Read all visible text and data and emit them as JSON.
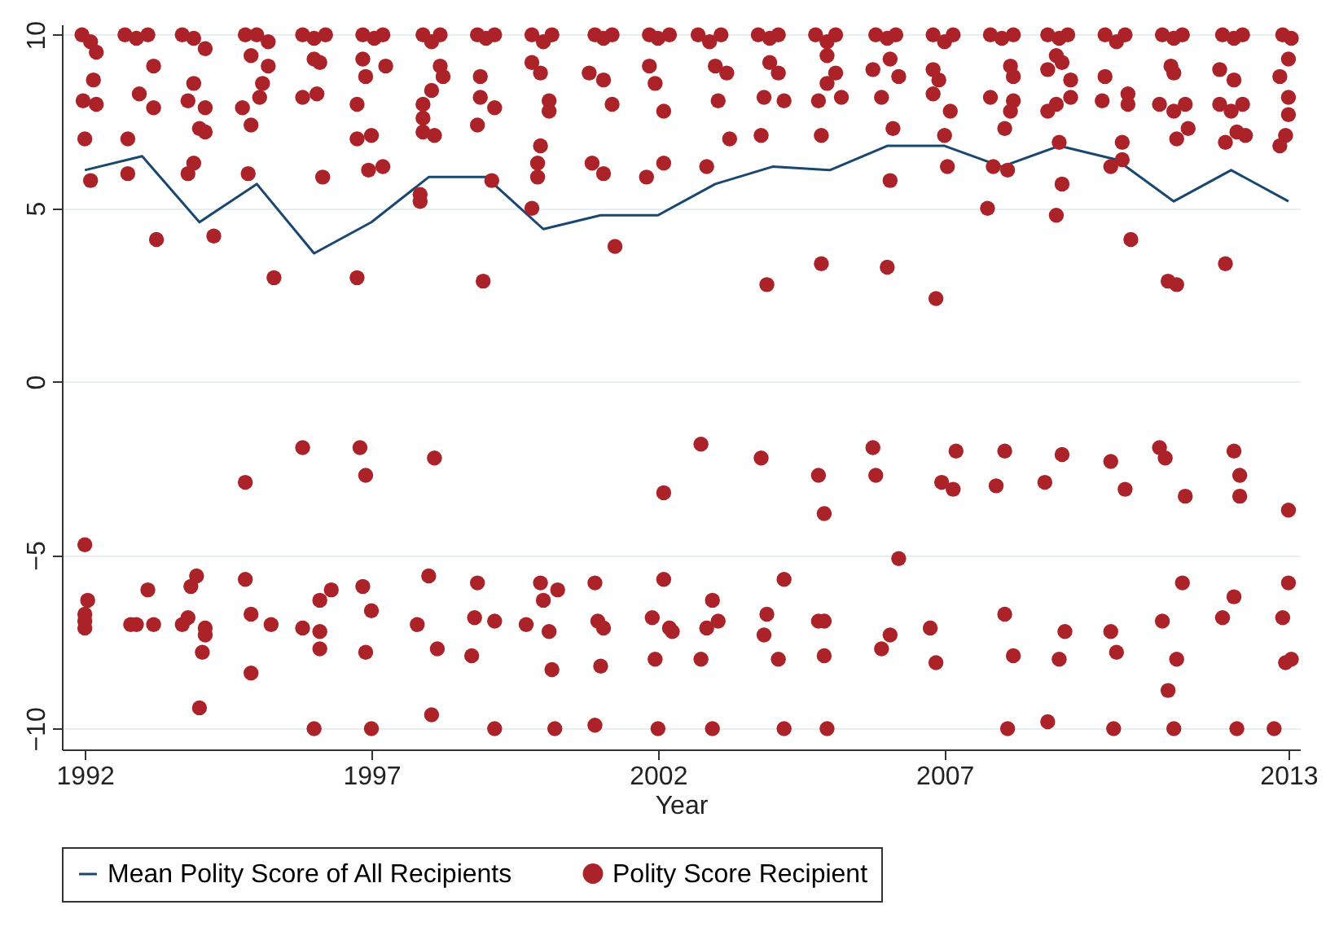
{
  "chart_data": {
    "type": "scatter",
    "xlabel": "Year",
    "xlim": [
      1991.6,
      2013.2
    ],
    "xticks": [
      1992,
      1997,
      2002,
      2007,
      2013
    ],
    "ylim": [
      -10.6,
      10.3
    ],
    "yticks": [
      -10,
      -5,
      0,
      5,
      10
    ],
    "grid": "y",
    "legend": "bottom",
    "series": [
      {
        "name": "Mean Polity Score of All Recipients",
        "type": "line",
        "color": "#1a476f",
        "x": [
          1992,
          1993,
          1994,
          1995,
          1996,
          1997,
          1998,
          1999,
          2000,
          2001,
          2002,
          2003,
          2004,
          2005,
          2006,
          2007,
          2008,
          2009,
          2010,
          2011,
          2012,
          2013
        ],
        "values": [
          6.1,
          6.5,
          4.6,
          5.7,
          3.7,
          4.6,
          5.9,
          5.9,
          4.4,
          4.8,
          4.8,
          5.7,
          6.2,
          6.1,
          6.8,
          6.8,
          6.2,
          6.8,
          6.4,
          5.2,
          6.1,
          5.2
        ]
      },
      {
        "name": "Polity Score Recipient",
        "color": "#ab2328",
        "x": [
          1991.95,
          1992.1,
          1992.2,
          1992.15,
          1991.97,
          1992.2,
          1992.0,
          1992.1,
          1992.7,
          1992.9,
          1993.1,
          1993.2,
          1992.95,
          1993.2,
          1992.75,
          1992.75,
          1993.25,
          1993.7,
          1993.9,
          1994.1,
          1993.9,
          1993.8,
          1994.1,
          1994.0,
          1994.1,
          1993.9,
          1993.8,
          1994.25,
          1994.8,
          1995.0,
          1995.2,
          1994.9,
          1995.2,
          1995.1,
          1995.05,
          1994.75,
          1994.9,
          1994.85,
          1995.3,
          1995.8,
          1996.0,
          1996.2,
          1996.0,
          1996.1,
          1995.8,
          1996.05,
          1996.15,
          1996.85,
          1997.05,
          1997.2,
          1996.85,
          1997.25,
          1996.9,
          1996.75,
          1996.75,
          1997.0,
          1996.95,
          1997.2,
          1996.75,
          1997.9,
          1998.05,
          1998.2,
          1998.2,
          1998.25,
          1998.05,
          1997.9,
          1997.9,
          1997.9,
          1998.1,
          1997.85,
          1997.85,
          1998.85,
          1999.0,
          1999.15,
          1998.9,
          1998.9,
          1999.15,
          1998.85,
          1999.1,
          1998.95,
          1999.8,
          2000.0,
          2000.15,
          1999.8,
          1999.95,
          2000.1,
          2000.1,
          1999.95,
          1999.9,
          1999.9,
          1999.8,
          2000.9,
          2001.05,
          2001.2,
          2000.8,
          2001.05,
          2001.2,
          2000.85,
          2001.05,
          2001.25,
          2001.85,
          2002.0,
          2002.2,
          2001.85,
          2001.95,
          2002.1,
          2002.1,
          2001.8,
          2002.7,
          2002.9,
          2003.1,
          2003.0,
          2003.2,
          2003.05,
          2003.25,
          2002.85,
          2003.75,
          2003.95,
          2004.1,
          2003.95,
          2004.1,
          2003.85,
          2004.2,
          2003.8,
          2003.9,
          2004.75,
          2004.95,
          2005.1,
          2004.95,
          2005.1,
          2004.95,
          2004.8,
          2005.2,
          2004.85,
          2004.85,
          2005.8,
          2006.0,
          2006.15,
          2006.05,
          2005.75,
          2006.2,
          2005.9,
          2006.1,
          2006.05,
          2006.0,
          2006.8,
          2007.0,
          2007.15,
          2006.8,
          2006.9,
          2006.8,
          2007.1,
          2007.0,
          2007.05,
          2006.85,
          2007.8,
          2008.0,
          2008.2,
          2008.15,
          2008.2,
          2007.8,
          2008.2,
          2008.15,
          2008.05,
          2007.85,
          2008.1,
          2007.75,
          2008.8,
          2009.0,
          2009.15,
          2008.95,
          2009.05,
          2008.8,
          2009.2,
          2009.2,
          2008.95,
          2008.8,
          2009.0,
          2009.05,
          2008.95,
          2009.8,
          2010.0,
          2010.15,
          2009.8,
          2009.75,
          2010.2,
          2010.2,
          2010.1,
          2010.1,
          2009.9,
          2010.25,
          2010.8,
          2011.0,
          2011.15,
          2010.95,
          2011.0,
          2010.75,
          2011.0,
          2011.2,
          2011.25,
          2011.05,
          2010.9,
          2011.05,
          2011.85,
          2012.05,
          2012.2,
          2011.8,
          2012.05,
          2011.8,
          2012.2,
          2012.0,
          2012.1,
          2012.25,
          2011.9,
          2011.9,
          2012.9,
          2013.05,
          2013.0,
          2012.85,
          2013.0,
          2013.0,
          2012.95,
          2012.85,
          1992.0,
          1992.05,
          1992.0,
          1992.0,
          1992.0,
          1992.8,
          1992.9,
          1993.2,
          1993.7,
          1993.8,
          1994.1,
          1994.1,
          1994.05,
          1994.0,
          1993.85,
          1993.95,
          1993.1,
          1994.8,
          1994.8,
          1994.9,
          1995.25,
          1994.9,
          1995.8,
          1995.8,
          1996.1,
          1996.1,
          1996.1,
          1996.3,
          1996.0,
          1996.8,
          1996.9,
          1996.85,
          1997.0,
          1996.9,
          1997.0,
          1998.1,
          1998.0,
          1997.8,
          1998.15,
          1998.05,
          1998.85,
          1998.8,
          1999.15,
          1998.75,
          1999.15,
          1999.95,
          2000.25,
          2000.0,
          1999.7,
          2000.1,
          2000.15,
          2000.2,
          2000.9,
          2000.95,
          2001.05,
          2001.0,
          2000.9,
          2002.1,
          2002.1,
          2001.9,
          2002.2,
          2002.25,
          2001.95,
          2002.0,
          2002.75,
          2002.95,
          2002.85,
          2003.05,
          2002.75,
          2002.95,
          2003.8,
          2004.2,
          2003.9,
          2003.85,
          2004.1,
          2004.2,
          2004.8,
          2004.9,
          2004.8,
          2004.9,
          2004.9,
          2004.95,
          2005.75,
          2005.8,
          2006.2,
          2006.05,
          2005.9,
          2006.75,
          2006.85,
          2006.95,
          2007.15,
          2007.2,
          2007.9,
          2008.05,
          2008.05,
          2008.2,
          2008.1,
          2008.75,
          2009.05,
          2009.1,
          2009.0,
          2008.8,
          2009.9,
          2010.15,
          2009.9,
          2010.0,
          2009.95,
          2010.75,
          2010.85,
          2011.2,
          2011.15,
          2010.8,
          2011.05,
          2010.9,
          2011.0,
          2012.05,
          2012.15,
          2012.15,
          2012.05,
          2011.85,
          2012.1,
          2012.75,
          2013.0,
          2013.0,
          2012.9,
          2012.95,
          2013.05
        ],
        "values": [
          10,
          9.8,
          9.5,
          8.7,
          8.1,
          8.0,
          7.0,
          5.8,
          10,
          9.9,
          10,
          9.1,
          8.3,
          7.9,
          7.0,
          6.0,
          4.1,
          10,
          9.9,
          9.6,
          8.6,
          8.1,
          7.9,
          7.3,
          7.2,
          6.3,
          6.0,
          4.2,
          10,
          10,
          9.8,
          9.4,
          9.1,
          8.6,
          8.2,
          7.9,
          7.4,
          6.0,
          3.0,
          10,
          9.9,
          10,
          9.3,
          9.2,
          8.2,
          8.3,
          5.9,
          10,
          9.9,
          10,
          9.3,
          9.1,
          8.8,
          8.0,
          7.0,
          7.1,
          6.1,
          6.2,
          3.0,
          10,
          9.8,
          10,
          9.1,
          8.8,
          8.4,
          8.0,
          7.6,
          7.2,
          7.1,
          5.4,
          5.2,
          10,
          9.9,
          10,
          8.8,
          8.2,
          7.9,
          7.4,
          5.8,
          2.9,
          10,
          9.8,
          10,
          9.2,
          8.9,
          8.1,
          7.8,
          6.8,
          6.3,
          5.9,
          5.0,
          10,
          9.9,
          10,
          8.9,
          8.7,
          8.0,
          6.3,
          6.0,
          3.9,
          10,
          9.9,
          10,
          9.1,
          8.6,
          7.8,
          6.3,
          5.9,
          10,
          9.8,
          10,
          9.1,
          8.9,
          8.1,
          7.0,
          6.2,
          10,
          9.9,
          10,
          9.2,
          8.9,
          8.2,
          8.1,
          7.1,
          2.8,
          10,
          9.8,
          10,
          9.4,
          8.9,
          8.6,
          8.1,
          8.2,
          7.1,
          3.4,
          10,
          9.9,
          10,
          9.3,
          9.0,
          8.8,
          8.2,
          7.3,
          5.8,
          3.3,
          10,
          9.8,
          10,
          9.0,
          8.7,
          8.3,
          7.8,
          7.1,
          6.2,
          2.4,
          10,
          9.9,
          10,
          9.1,
          8.8,
          8.2,
          8.1,
          7.8,
          7.3,
          6.2,
          6.1,
          5.0,
          10,
          9.9,
          10,
          9.4,
          9.2,
          9.0,
          8.7,
          8.2,
          8.0,
          7.8,
          6.9,
          5.7,
          4.8,
          10,
          9.8,
          10,
          8.8,
          8.1,
          8.3,
          8.0,
          6.9,
          6.4,
          6.2,
          4.1,
          10,
          9.9,
          10,
          9.1,
          8.9,
          8.0,
          7.8,
          8.0,
          7.3,
          7.0,
          2.9,
          2.8,
          10,
          9.9,
          10,
          9.0,
          8.7,
          8.0,
          8.0,
          7.8,
          7.2,
          7.1,
          6.9,
          3.4,
          10,
          9.9,
          9.3,
          8.8,
          8.2,
          7.7,
          7.1,
          6.8,
          -4.7,
          -6.3,
          -6.7,
          -6.9,
          -7.1,
          -7.0,
          -7.0,
          -7.0,
          -7.0,
          -6.8,
          -7.1,
          -7.3,
          -7.8,
          -9.4,
          -5.9,
          -5.6,
          -6.0,
          -2.9,
          -5.7,
          -6.7,
          -7.0,
          -8.4,
          -1.9,
          -7.1,
          -7.2,
          -7.7,
          -6.3,
          -6.0,
          -10,
          -1.9,
          -2.7,
          -5.9,
          -6.6,
          -7.8,
          -10,
          -2.2,
          -5.6,
          -7.0,
          -7.7,
          -9.6,
          -5.8,
          -6.8,
          -6.9,
          -7.9,
          -10,
          -5.8,
          -6.0,
          -6.3,
          -7.0,
          -7.2,
          -8.3,
          -10,
          -5.8,
          -6.9,
          -7.1,
          -8.2,
          -9.9,
          -3.2,
          -5.7,
          -6.8,
          -7.1,
          -7.2,
          -8.0,
          -10,
          -1.8,
          -6.3,
          -7.1,
          -6.9,
          -8.0,
          -10,
          -2.2,
          -5.7,
          -6.7,
          -7.3,
          -8.0,
          -10,
          -2.7,
          -3.8,
          -6.9,
          -6.9,
          -7.9,
          -10,
          -1.9,
          -2.7,
          -5.1,
          -7.3,
          -7.7,
          -7.1,
          -8.1,
          -2.9,
          -3.1,
          -2.0,
          -3.0,
          -2.0,
          -6.7,
          -7.9,
          -10,
          -2.9,
          -2.1,
          -7.2,
          -8.0,
          -9.8,
          -2.3,
          -3.1,
          -7.2,
          -7.8,
          -10,
          -1.9,
          -2.2,
          -3.3,
          -5.8,
          -6.9,
          -8.0,
          -8.9,
          -10,
          -2.0,
          -2.7,
          -3.3,
          -6.2,
          -6.8,
          -10,
          -10,
          -3.7,
          -5.8,
          -6.8,
          -8.1,
          -8.0
        ]
      }
    ]
  }
}
